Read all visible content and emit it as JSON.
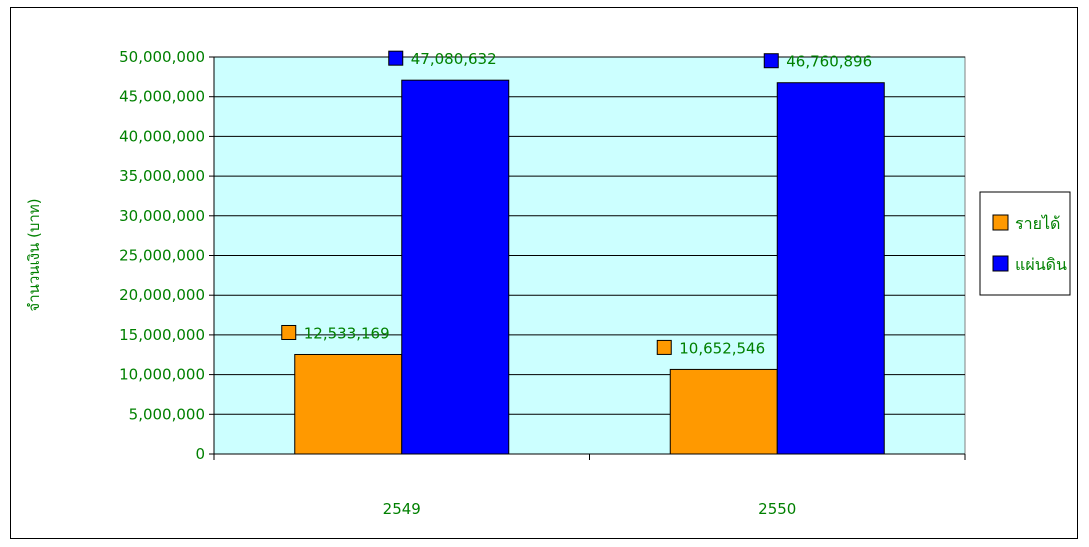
{
  "chart_data": {
    "type": "bar",
    "title": "",
    "xlabel": "",
    "ylabel": "จำนวนเงิน (บาท)",
    "categories": [
      "2549",
      "2550"
    ],
    "series": [
      {
        "name": "รายได้",
        "values": [
          12533169,
          10652546
        ],
        "color": "#FF9900"
      },
      {
        "name": "แผ่นดิน",
        "values": [
          47080632,
          46760896
        ],
        "color": "#0000FF"
      }
    ],
    "data_labels": [
      [
        "12,533,169",
        "10,652,546"
      ],
      [
        "47,080,632",
        "46,760,896"
      ]
    ],
    "ylim": [
      0,
      50000000
    ],
    "ytick_step": 5000000,
    "yticks": [
      "0",
      "5,000,000",
      "10,000,000",
      "15,000,000",
      "20,000,000",
      "25,000,000",
      "30,000,000",
      "35,000,000",
      "40,000,000",
      "45,000,000",
      "50,000,000"
    ],
    "plot_background": "#CCFFFF",
    "grid": true,
    "legend_position": "right"
  }
}
